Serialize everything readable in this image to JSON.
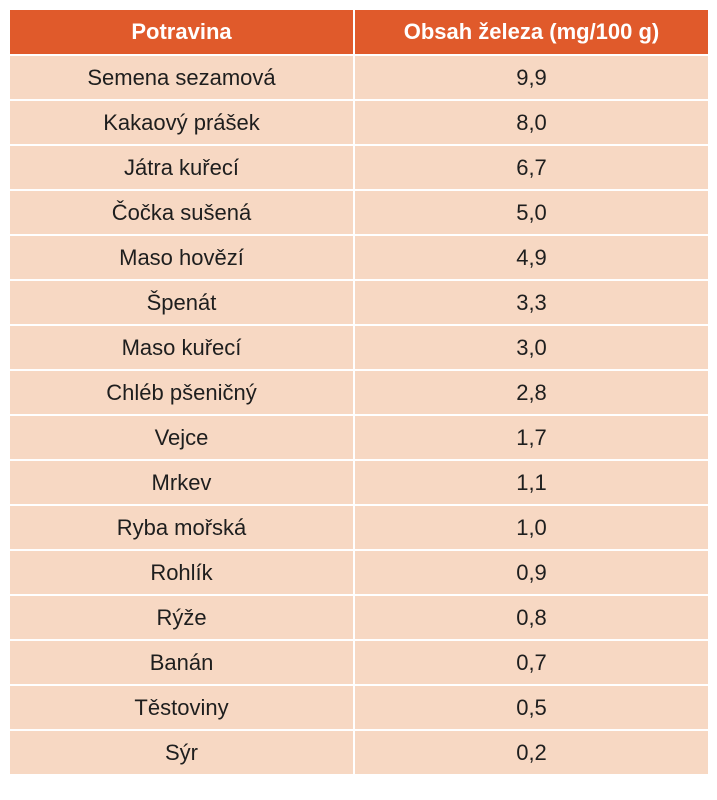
{
  "table": {
    "headers": [
      "Potravina",
      "Obsah železa (mg/100 g)"
    ],
    "rows": [
      [
        "Semena sezamová",
        "9,9"
      ],
      [
        "Kakaový prášek",
        "8,0"
      ],
      [
        "Játra kuřecí",
        "6,7"
      ],
      [
        "Čočka sušená",
        "5,0"
      ],
      [
        "Maso hovězí",
        "4,9"
      ],
      [
        "Špenát",
        "3,3"
      ],
      [
        "Maso kuřecí",
        "3,0"
      ],
      [
        "Chléb pšeničný",
        "2,8"
      ],
      [
        "Vejce",
        "1,7"
      ],
      [
        "Mrkev",
        "1,1"
      ],
      [
        "Ryba mořská",
        "1,0"
      ],
      [
        "Rohlík",
        "0,9"
      ],
      [
        "Rýže",
        "0,8"
      ],
      [
        "Banán",
        "0,7"
      ],
      [
        "Těstoviny",
        "0,5"
      ],
      [
        "Sýr",
        "0,2"
      ]
    ]
  },
  "colors": {
    "header_bg": "#e05a2b",
    "row_bg": "#f7d8c3",
    "header_text": "#ffffff",
    "body_text": "#1e1e1e"
  }
}
